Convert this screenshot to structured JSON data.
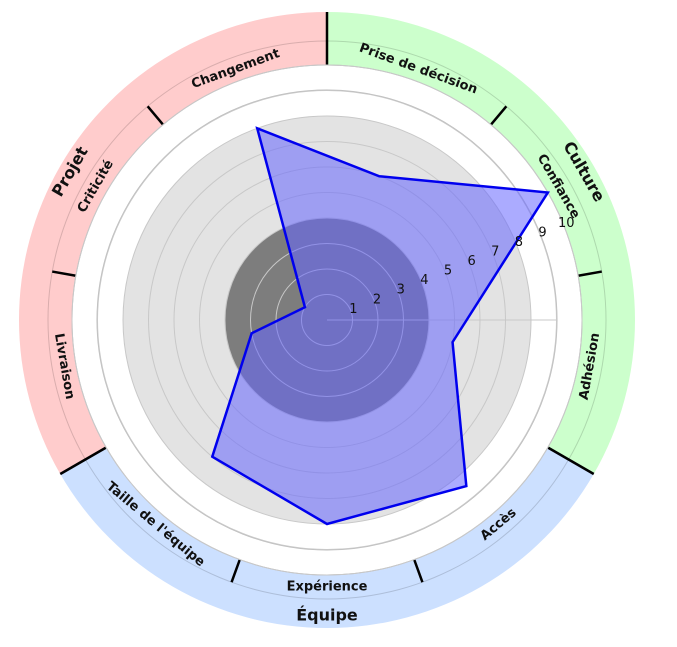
{
  "chart_data": {
    "type": "radar",
    "r_ticks": [
      1,
      2,
      3,
      4,
      5,
      6,
      7,
      8,
      9,
      10
    ],
    "r_max": 10,
    "groups": [
      {
        "name": "Culture",
        "color": "#ccffcc",
        "categories": [
          "Prise de décision",
          "Confiance",
          "Adhésion"
        ]
      },
      {
        "name": "Équipe",
        "color": "#cce0ff",
        "categories": [
          "Accès",
          "Expérience",
          "Taille de l'équipe"
        ]
      },
      {
        "name": "Projet",
        "color": "#ffcccc",
        "categories": [
          "Livraison",
          "Criticité",
          "Changement"
        ]
      }
    ],
    "axes": [
      "Prise de décision",
      "Confiance",
      "Adhésion",
      "Accès",
      "Expérience",
      "Taille de l'équipe",
      "Livraison",
      "Criticité",
      "Changement"
    ],
    "values": [
      6,
      10,
      5,
      8.5,
      8,
      7,
      3,
      1,
      8
    ],
    "series_color": "#0000ee",
    "fill_color": "#6666ff",
    "band_colors": {
      "outer": "#e3e3e3",
      "inner": "#7d7d7d"
    }
  }
}
